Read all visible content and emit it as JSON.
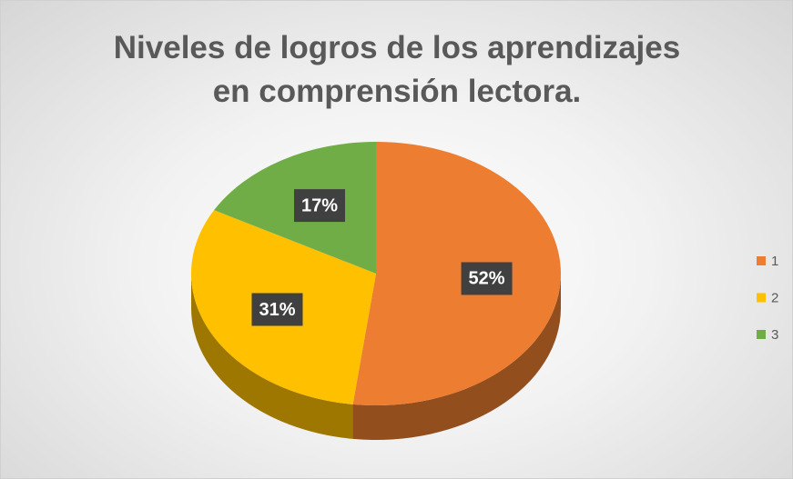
{
  "chart_data": {
    "type": "pie",
    "title": "Niveles de logros de los aprendizajes en comprensión lectora.",
    "categories": [
      "1",
      "2",
      "3"
    ],
    "values": [
      52,
      31,
      17
    ],
    "value_labels": [
      "52%",
      "31%",
      "17%"
    ],
    "colors": [
      "#ed7d31",
      "#ffc000",
      "#70ad47"
    ],
    "legend": "right"
  }
}
